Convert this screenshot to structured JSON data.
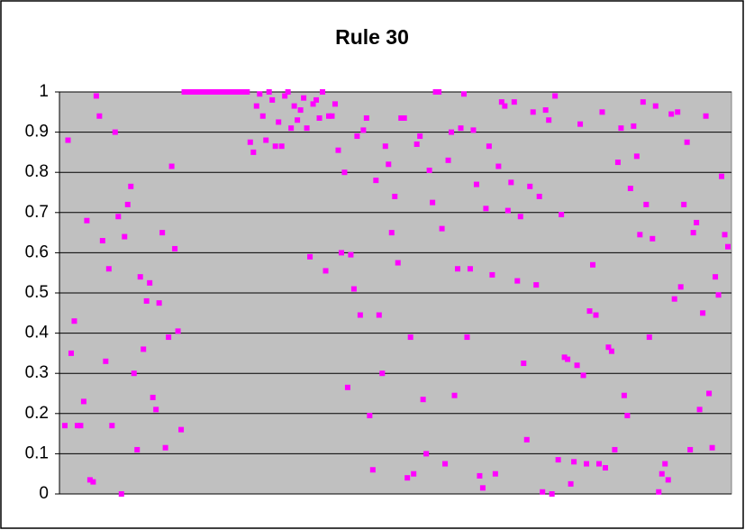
{
  "chart_data": {
    "type": "scatter",
    "title": "Rule 30",
    "color": "#ff00ff",
    "grid": true,
    "ylim": [
      0,
      1
    ],
    "yticks": [
      0,
      0.1,
      0.2,
      0.3,
      0.4,
      0.5,
      0.6,
      0.7,
      0.8,
      0.9,
      1
    ],
    "values": [
      0.17,
      0.88,
      0.35,
      0.43,
      0.17,
      0.17,
      0.23,
      0.68,
      0.035,
      0.03,
      0.99,
      0.94,
      0.63,
      0.33,
      0.56,
      0.17,
      0.9,
      0.69,
      0,
      0.64,
      0.72,
      0.765,
      0.3,
      0.11,
      0.54,
      0.36,
      0.48,
      0.525,
      0.24,
      0.21,
      0.475,
      0.65,
      0.115,
      0.39,
      0.815,
      0.61,
      0.405,
      0.16,
      1,
      1,
      1,
      1,
      1,
      1,
      1,
      1,
      1,
      1,
      1,
      1,
      1,
      1,
      1,
      1,
      1,
      1,
      1,
      1,
      1,
      0.875,
      0.85,
      0.965,
      0.995,
      0.94,
      0.88,
      1,
      0.98,
      0.865,
      0.925,
      0.865,
      0.99,
      1,
      0.91,
      0.965,
      0.93,
      0.955,
      0.985,
      0.91,
      0.59,
      0.97,
      0.98,
      0.935,
      1,
      0.555,
      0.94,
      0.94,
      0.97,
      0.855,
      0.6,
      0.8,
      0.265,
      0.595,
      0.51,
      0.89,
      0.445,
      0.905,
      0.935,
      0.195,
      0.06,
      0.78,
      0.445,
      0.3,
      0.865,
      0.82,
      0.65,
      0.74,
      0.575,
      0.935,
      0.935,
      0.04,
      0.39,
      0.05,
      0.87,
      0.89,
      0.235,
      0.1,
      0.805,
      0.725,
      1,
      1,
      0.66,
      0.075,
      0.83,
      0.9,
      0.245,
      0.56,
      0.91,
      0.995,
      0.39,
      0.56,
      0.905,
      0.77,
      0.045,
      0.015,
      0.71,
      0.865,
      0.545,
      0.05,
      0.815,
      0.975,
      0.965,
      0.705,
      0.775,
      0.975,
      0.53,
      0.69,
      0.325,
      0.135,
      0.765,
      0.95,
      0.52,
      0.74,
      0.005,
      0.955,
      0.93,
      0,
      0.99,
      0.085,
      0.695,
      0.34,
      0.335,
      0.025,
      0.08,
      0.32,
      0.92,
      0.295,
      0.075,
      0.455,
      0.57,
      0.445,
      0.075,
      0.95,
      0.065,
      0.365,
      0.355,
      0.11,
      0.825,
      0.91,
      0.245,
      0.195,
      0.76,
      0.915,
      0.84,
      0.645,
      0.975,
      0.72,
      0.39,
      0.635,
      0.965,
      0.005,
      0.05,
      0.075,
      0.035,
      0.945,
      0.485,
      0.95,
      0.515,
      0.72,
      0.875,
      0.11,
      0.65,
      0.675,
      0.21,
      0.45,
      0.94,
      0.25,
      0.115,
      0.54,
      0.495,
      0.79,
      0.645,
      0.615
    ]
  }
}
